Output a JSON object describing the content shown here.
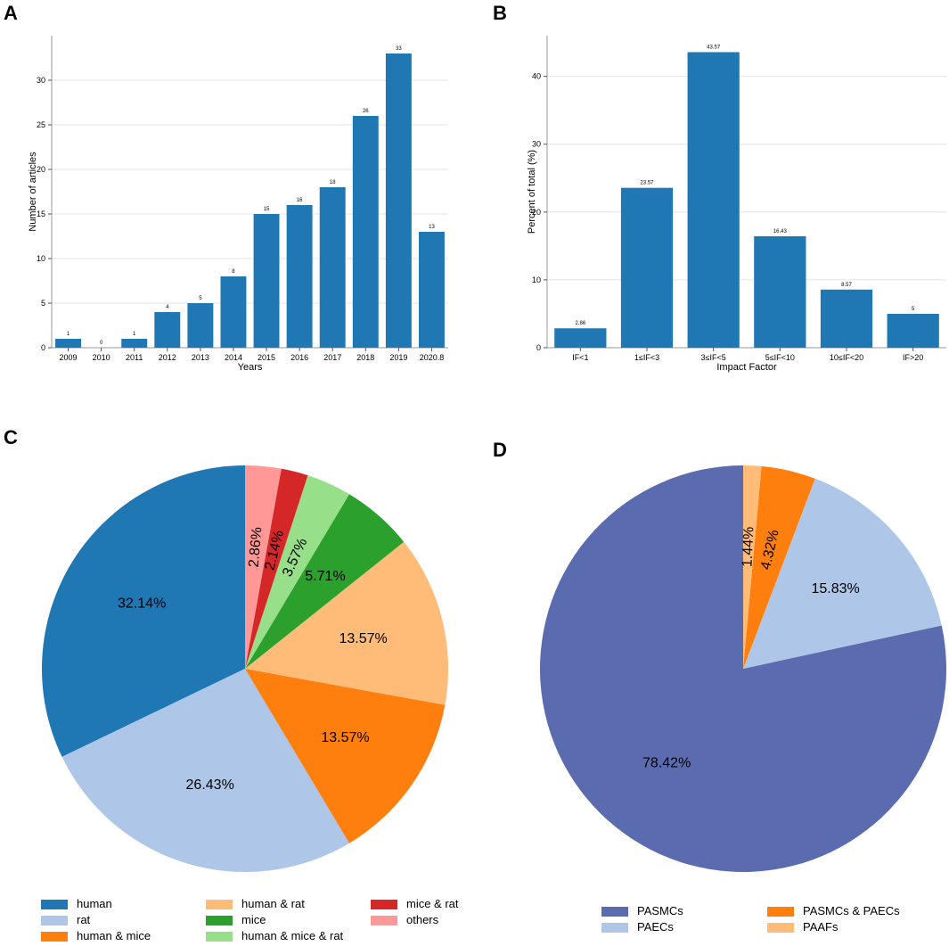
{
  "panels": {
    "a": "A",
    "b": "B",
    "c": "C",
    "d": "D"
  },
  "chart_data": [
    {
      "id": "A",
      "type": "bar",
      "categories": [
        "2009",
        "2010",
        "2011",
        "2012",
        "2013",
        "2014",
        "2015",
        "2016",
        "2017",
        "2018",
        "2019",
        "2020.8"
      ],
      "values": [
        1,
        0,
        1,
        4,
        5,
        8,
        15,
        16,
        18,
        26,
        33,
        13
      ],
      "data_labels": [
        "1",
        "0",
        "1",
        "4",
        "5",
        "8",
        "15",
        "16",
        "18",
        "26",
        "33",
        "13"
      ],
      "xlabel": "Years",
      "ylabel": "Number of articles",
      "ylim": [
        0,
        35
      ],
      "yticks": [
        0,
        5,
        10,
        15,
        20,
        25,
        30
      ],
      "ytick_labels": [
        "0",
        "5",
        "10",
        "15",
        "20",
        "25",
        "30"
      ],
      "grid": "horizontal",
      "color": "#1f77b4"
    },
    {
      "id": "B",
      "type": "bar",
      "categories": [
        "IF<1",
        "1≤IF<3",
        "3≤IF<5",
        "5≤IF<10",
        "10≤IF<20",
        "IF>20"
      ],
      "values": [
        2.86,
        23.57,
        43.57,
        16.43,
        8.57,
        5
      ],
      "data_labels": [
        "2.86",
        "23.57",
        "43.57",
        "16.43",
        "8.57",
        "5"
      ],
      "xlabel": "Impact Factor",
      "ylabel": "Percent of total (%)",
      "ylim": [
        0,
        46
      ],
      "yticks": [
        0,
        10,
        20,
        30,
        40
      ],
      "ytick_labels": [
        "0",
        "10",
        "20",
        "30",
        "40"
      ],
      "grid": "horizontal",
      "color": "#1f77b4"
    },
    {
      "id": "C",
      "type": "pie",
      "start": "top",
      "direction": "counterclockwise",
      "slices": [
        {
          "label": "human",
          "value": 32.14,
          "pct": "32.14%",
          "color": "#1f77b4"
        },
        {
          "label": "rat",
          "value": 26.43,
          "pct": "26.43%",
          "color": "#aec7e8"
        },
        {
          "label": "human & mice",
          "value": 13.57,
          "pct": "13.57%",
          "color": "#ff7f0e"
        },
        {
          "label": "human & rat",
          "value": 13.57,
          "pct": "13.57%",
          "color": "#ffbb78"
        },
        {
          "label": "mice",
          "value": 5.71,
          "pct": "5.71%",
          "color": "#2ca02c"
        },
        {
          "label": "human & mice & rat",
          "value": 3.57,
          "pct": "3.57%",
          "color": "#98df8a"
        },
        {
          "label": "mice & rat",
          "value": 2.14,
          "pct": "2.14%",
          "color": "#d62728"
        },
        {
          "label": "others",
          "value": 2.86,
          "pct": "2.86%",
          "color": "#ff9896"
        }
      ],
      "legend": "bottom"
    },
    {
      "id": "D",
      "type": "pie",
      "start": "top",
      "direction": "counterclockwise",
      "slices": [
        {
          "label": "PASMCs",
          "value": 78.42,
          "pct": "78.42%",
          "color": "#5b6bb0"
        },
        {
          "label": "PAECs",
          "value": 15.83,
          "pct": "15.83%",
          "color": "#aec7e8"
        },
        {
          "label": "PASMCs & PAECs",
          "value": 4.32,
          "pct": "4.32%",
          "color": "#ff7f0e"
        },
        {
          "label": "PAAFs",
          "value": 1.44,
          "pct": "1.44%",
          "color": "#ffbb78"
        }
      ],
      "legend": "bottom"
    }
  ]
}
